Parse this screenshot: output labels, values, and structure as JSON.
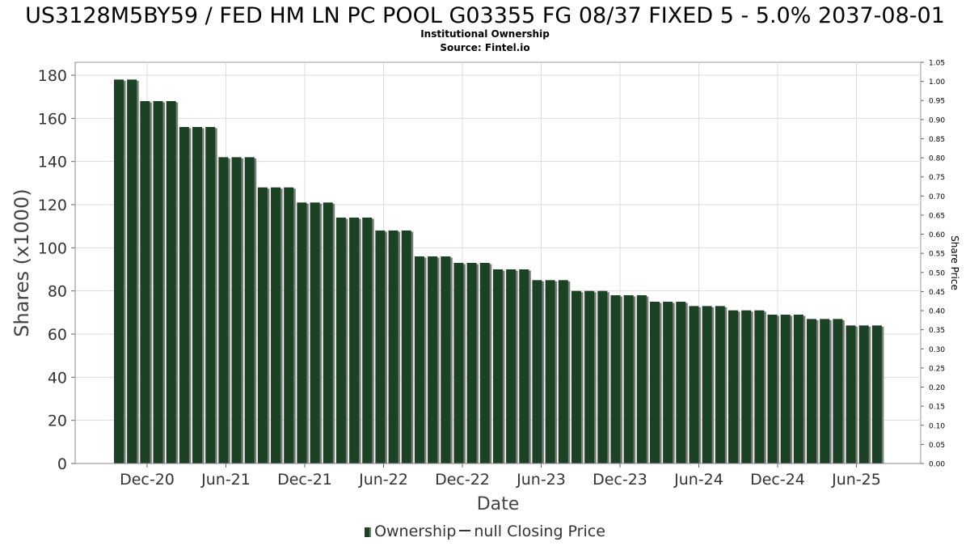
{
  "chart_data": {
    "type": "bar",
    "title": "US3128M5BY59 / FED HM LN PC POOL G03355 FG 08/37 FIXED 5 - 5.0% 2037-08-01",
    "subtitle": "Institutional Ownership",
    "source": "Source: Fintel.io",
    "xlabel": "Date",
    "ylabel": "Shares (x1000)",
    "ylabel_right": "Share Price",
    "ylim": [
      0,
      186
    ],
    "y_ticks": [
      0,
      20,
      40,
      60,
      80,
      100,
      120,
      140,
      160,
      180
    ],
    "ylim_right": [
      0,
      1.05
    ],
    "y_right_ticks": [
      "0.00",
      "0.05",
      "0.10",
      "0.15",
      "0.20",
      "0.25",
      "0.30",
      "0.35",
      "0.40",
      "0.45",
      "0.50",
      "0.55",
      "0.60",
      "0.65",
      "0.70",
      "0.75",
      "0.80",
      "0.85",
      "0.90",
      "0.95",
      "1.00",
      "1.05"
    ],
    "x_tick_labels": [
      "Dec-20",
      "Jun-21",
      "Dec-21",
      "Jun-22",
      "Dec-22",
      "Jun-23",
      "Dec-23",
      "Jun-24",
      "Dec-24",
      "Jun-25"
    ],
    "grid": true,
    "legend_position": "bottom",
    "series": [
      {
        "name": "Ownership",
        "color": "#1b4224",
        "values": [
          178,
          178,
          168,
          168,
          168,
          156,
          156,
          156,
          142,
          142,
          142,
          128,
          128,
          128,
          121,
          121,
          121,
          114,
          114,
          114,
          108,
          108,
          108,
          96,
          96,
          96,
          93,
          93,
          93,
          90,
          90,
          90,
          85,
          85,
          85,
          80,
          80,
          80,
          78,
          78,
          78,
          75,
          75,
          75,
          73,
          73,
          73,
          71,
          71,
          71,
          69,
          69,
          69,
          67,
          67,
          67,
          64,
          64,
          64
        ]
      }
    ],
    "legend": [
      {
        "label": "Ownership",
        "marker": "bar"
      },
      {
        "label": "null Closing Price",
        "marker": "line"
      }
    ]
  }
}
